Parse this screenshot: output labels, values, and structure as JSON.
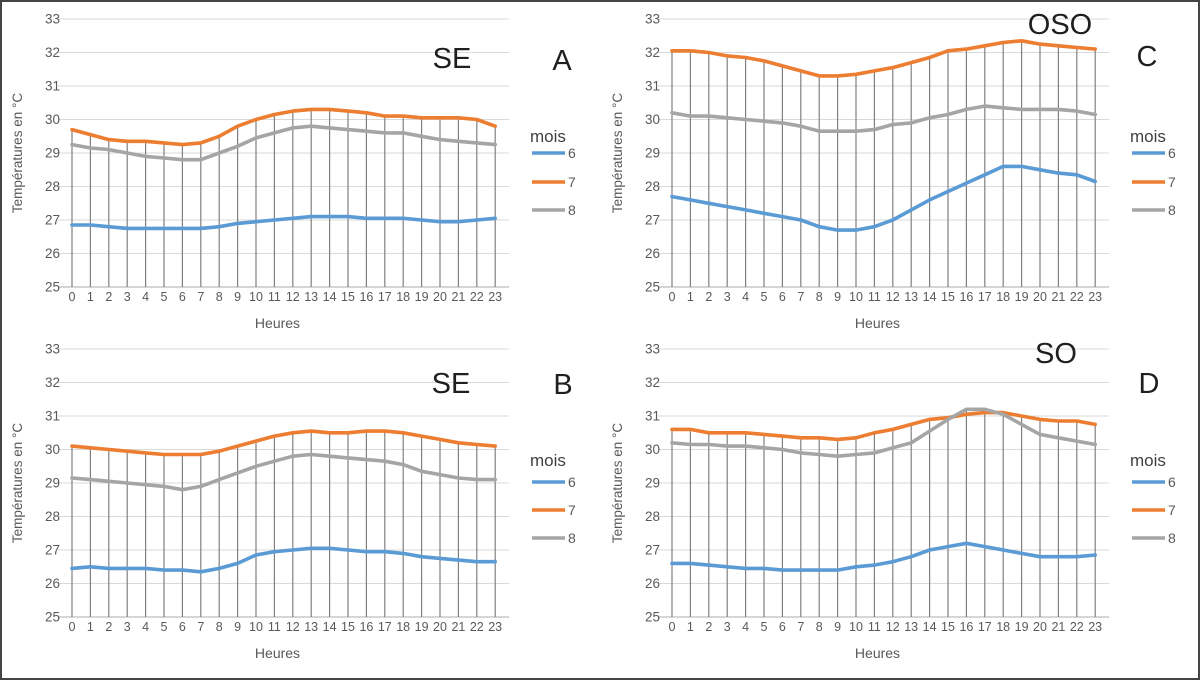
{
  "figure": {
    "ylabel": "Températures en °C",
    "xlabel": "Heures",
    "legend_title": "mois",
    "colors": {
      "mois6": "#5B9BD5",
      "mois7": "#ED7D31",
      "mois8": "#A5A5A5",
      "gridline": "#D9D9D9",
      "dropline": "#808080",
      "axis_line": "#ADADAD",
      "tick_text": "#595959",
      "title_text": "#1F1F1F"
    }
  },
  "chart_data": [
    {
      "type": "line",
      "panel_letter": "A",
      "title": "SE",
      "xlabel": "Heures",
      "ylabel": "Températures en °C",
      "ylim": [
        25,
        33
      ],
      "ystep": 1,
      "grid": true,
      "drop_lines": true,
      "legend_position": "right",
      "legend": {
        "title": "mois",
        "entries": [
          "6",
          "7",
          "8"
        ]
      },
      "x": [
        0,
        1,
        2,
        3,
        4,
        5,
        6,
        7,
        8,
        9,
        10,
        11,
        12,
        13,
        14,
        15,
        16,
        17,
        18,
        19,
        20,
        21,
        22,
        23
      ],
      "series": [
        {
          "name": "6",
          "color": "#5B9BD5",
          "values": [
            26.85,
            26.85,
            26.8,
            26.75,
            26.75,
            26.75,
            26.75,
            26.75,
            26.8,
            26.9,
            26.95,
            27.0,
            27.05,
            27.1,
            27.1,
            27.1,
            27.05,
            27.05,
            27.05,
            27.0,
            26.95,
            26.95,
            27.0,
            27.05
          ]
        },
        {
          "name": "7",
          "color": "#ED7D31",
          "values": [
            29.7,
            29.55,
            29.4,
            29.35,
            29.35,
            29.3,
            29.25,
            29.3,
            29.5,
            29.8,
            30.0,
            30.15,
            30.25,
            30.3,
            30.3,
            30.25,
            30.2,
            30.1,
            30.1,
            30.05,
            30.05,
            30.05,
            30.0,
            29.8
          ]
        },
        {
          "name": "8",
          "color": "#A5A5A5",
          "values": [
            29.25,
            29.15,
            29.1,
            29.0,
            28.9,
            28.85,
            28.8,
            28.8,
            29.0,
            29.2,
            29.45,
            29.6,
            29.75,
            29.8,
            29.75,
            29.7,
            29.65,
            29.6,
            29.6,
            29.5,
            29.4,
            29.35,
            29.3,
            29.25
          ]
        }
      ]
    },
    {
      "type": "line",
      "panel_letter": "B",
      "title": "SE",
      "xlabel": "Heures",
      "ylabel": "Températures en °C",
      "ylim": [
        25,
        33
      ],
      "ystep": 1,
      "grid": true,
      "drop_lines": true,
      "legend_position": "right",
      "legend": {
        "title": "mois",
        "entries": [
          "6",
          "7",
          "8"
        ]
      },
      "x": [
        0,
        1,
        2,
        3,
        4,
        5,
        6,
        7,
        8,
        9,
        10,
        11,
        12,
        13,
        14,
        15,
        16,
        17,
        18,
        19,
        20,
        21,
        22,
        23
      ],
      "series": [
        {
          "name": "6",
          "color": "#5B9BD5",
          "values": [
            26.45,
            26.5,
            26.45,
            26.45,
            26.45,
            26.4,
            26.4,
            26.35,
            26.45,
            26.6,
            26.85,
            26.95,
            27.0,
            27.05,
            27.05,
            27.0,
            26.95,
            26.95,
            26.9,
            26.8,
            26.75,
            26.7,
            26.65,
            26.65
          ]
        },
        {
          "name": "7",
          "color": "#ED7D31",
          "values": [
            30.1,
            30.05,
            30.0,
            29.95,
            29.9,
            29.85,
            29.85,
            29.85,
            29.95,
            30.1,
            30.25,
            30.4,
            30.5,
            30.55,
            30.5,
            30.5,
            30.55,
            30.55,
            30.5,
            30.4,
            30.3,
            30.2,
            30.15,
            30.1
          ]
        },
        {
          "name": "8",
          "color": "#A5A5A5",
          "values": [
            29.15,
            29.1,
            29.05,
            29.0,
            28.95,
            28.9,
            28.8,
            28.9,
            29.1,
            29.3,
            29.5,
            29.65,
            29.8,
            29.85,
            29.8,
            29.75,
            29.7,
            29.65,
            29.55,
            29.35,
            29.25,
            29.15,
            29.1,
            29.1
          ]
        }
      ]
    },
    {
      "type": "line",
      "panel_letter": "C",
      "title": "OSO",
      "xlabel": "Heures",
      "ylabel": "Températures en °C",
      "ylim": [
        25,
        33
      ],
      "ystep": 1,
      "grid": true,
      "drop_lines": true,
      "legend_position": "right",
      "legend": {
        "title": "mois",
        "entries": [
          "6",
          "7",
          "8"
        ]
      },
      "x": [
        0,
        1,
        2,
        3,
        4,
        5,
        6,
        7,
        8,
        9,
        10,
        11,
        12,
        13,
        14,
        15,
        16,
        17,
        18,
        19,
        20,
        21,
        22,
        23
      ],
      "series": [
        {
          "name": "6",
          "color": "#5B9BD5",
          "values": [
            27.7,
            27.6,
            27.5,
            27.4,
            27.3,
            27.2,
            27.1,
            27.0,
            26.8,
            26.7,
            26.7,
            26.8,
            27.0,
            27.3,
            27.6,
            27.85,
            28.1,
            28.35,
            28.6,
            28.6,
            28.5,
            28.4,
            28.35,
            28.15
          ]
        },
        {
          "name": "7",
          "color": "#ED7D31",
          "values": [
            32.05,
            32.05,
            32.0,
            31.9,
            31.85,
            31.75,
            31.6,
            31.45,
            31.3,
            31.3,
            31.35,
            31.45,
            31.55,
            31.7,
            31.85,
            32.05,
            32.1,
            32.2,
            32.3,
            32.35,
            32.25,
            32.2,
            32.15,
            32.1
          ]
        },
        {
          "name": "8",
          "color": "#A5A5A5",
          "values": [
            30.2,
            30.1,
            30.1,
            30.05,
            30.0,
            29.95,
            29.9,
            29.8,
            29.65,
            29.65,
            29.65,
            29.7,
            29.85,
            29.9,
            30.05,
            30.15,
            30.3,
            30.4,
            30.35,
            30.3,
            30.3,
            30.3,
            30.25,
            30.15
          ]
        }
      ]
    },
    {
      "type": "line",
      "panel_letter": "D",
      "title": "SO",
      "xlabel": "Heures",
      "ylabel": "Températures en °C",
      "ylim": [
        25,
        33
      ],
      "ystep": 1,
      "grid": true,
      "drop_lines": true,
      "legend_position": "right",
      "legend": {
        "title": "mois",
        "entries": [
          "6",
          "7",
          "8"
        ]
      },
      "x": [
        0,
        1,
        2,
        3,
        4,
        5,
        6,
        7,
        8,
        9,
        10,
        11,
        12,
        13,
        14,
        15,
        16,
        17,
        18,
        19,
        20,
        21,
        22,
        23
      ],
      "series": [
        {
          "name": "6",
          "color": "#5B9BD5",
          "values": [
            26.6,
            26.6,
            26.55,
            26.5,
            26.45,
            26.45,
            26.4,
            26.4,
            26.4,
            26.4,
            26.5,
            26.55,
            26.65,
            26.8,
            27.0,
            27.1,
            27.2,
            27.1,
            27.0,
            26.9,
            26.8,
            26.8,
            26.8,
            26.85
          ]
        },
        {
          "name": "7",
          "color": "#ED7D31",
          "values": [
            30.6,
            30.6,
            30.5,
            30.5,
            30.5,
            30.45,
            30.4,
            30.35,
            30.35,
            30.3,
            30.35,
            30.5,
            30.6,
            30.75,
            30.9,
            30.95,
            31.05,
            31.1,
            31.1,
            31.0,
            30.9,
            30.85,
            30.85,
            30.75
          ]
        },
        {
          "name": "8",
          "color": "#A5A5A5",
          "values": [
            30.2,
            30.15,
            30.15,
            30.1,
            30.1,
            30.05,
            30.0,
            29.9,
            29.85,
            29.8,
            29.85,
            29.9,
            30.05,
            30.2,
            30.55,
            30.9,
            31.2,
            31.2,
            31.05,
            30.75,
            30.45,
            30.35,
            30.25,
            30.15
          ]
        }
      ]
    }
  ]
}
